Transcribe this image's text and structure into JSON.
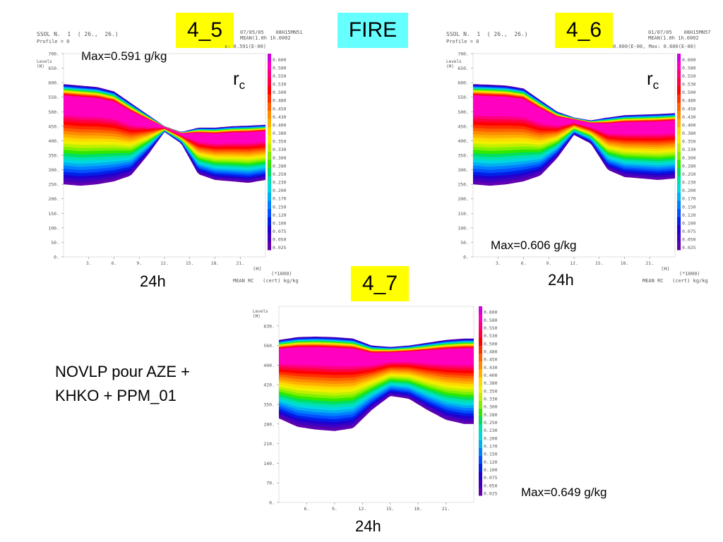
{
  "tags": {
    "p45": "4_5",
    "fire": "FIRE",
    "p46": "4_6",
    "p47": "4_7"
  },
  "panels": [
    {
      "key": "p45",
      "time_label": "24h",
      "max_label": "Max=0.591 g/kg",
      "rc": "r",
      "rc_sub": "c",
      "header": "SSOL N.  1  ( 26.,  26.)",
      "profile": "Profile = 0",
      "header_right": "07/05/05    08H15MN51\nMEAN(1.0h 1h.0002",
      "header_right2": "x: 0.591(E-00)",
      "ylevels": "Levels\n(M)",
      "xunits": "(H)",
      "corner": "(*1000)",
      "footer": "MEAN RC   (cert) kg/kg"
    },
    {
      "key": "p46",
      "time_label": "24h",
      "max_label": "Max=0.606 g/kg",
      "rc": "r",
      "rc_sub": "c",
      "header": "SSOL N.  1  ( 26.,  26.)",
      "profile": "Profile = 0",
      "header_right": "01/07/05    08H15MN57\nMEAN(1.0h 1h.0002",
      "header_right2": "0.000(E-00, Max: 0.606(E-00)",
      "ylevels": "Levels\n(M)",
      "xunits": "(H)",
      "corner": "(*1000)",
      "footer": "MEAN RC   (cert) kg/kg"
    },
    {
      "key": "p47",
      "time_label": "24h",
      "max_label": "Max=0.649 g/kg",
      "ylevels": "Levels\n(M)"
    }
  ],
  "novlp": [
    "NOVLP pour AZE +",
    "KHKO + PPM_01"
  ],
  "chart_data": [
    {
      "type": "heatmap",
      "name": "4_5",
      "x_ticks": [
        3,
        6,
        9,
        12,
        15,
        18,
        21
      ],
      "xlim": [
        0,
        24
      ],
      "y_ticks": [
        0,
        50,
        100,
        150,
        200,
        250,
        300,
        350,
        400,
        450,
        500,
        550,
        600,
        650,
        700
      ],
      "ylim": [
        0,
        700
      ],
      "x": [
        0,
        2,
        4,
        6,
        8,
        10,
        12,
        14,
        16,
        18,
        20,
        22,
        24
      ],
      "cloud_top": [
        595,
        590,
        585,
        570,
        530,
        490,
        450,
        430,
        445,
        445,
        450,
        452,
        455
      ],
      "cloud_base": [
        250,
        245,
        250,
        260,
        280,
        350,
        430,
        390,
        285,
        265,
        260,
        255,
        265
      ],
      "max_value": 0.591,
      "units": "g/kg"
    },
    {
      "type": "heatmap",
      "name": "4_6",
      "x_ticks": [
        3,
        6,
        9,
        12,
        15,
        18,
        21
      ],
      "xlim": [
        0,
        24
      ],
      "y_ticks": [
        0,
        50,
        100,
        150,
        200,
        250,
        300,
        350,
        400,
        450,
        500,
        550,
        600,
        650,
        700
      ],
      "ylim": [
        0,
        700
      ],
      "x": [
        0,
        2,
        4,
        6,
        8,
        10,
        12,
        14,
        16,
        18,
        20,
        22,
        24
      ],
      "cloud_top": [
        595,
        593,
        590,
        580,
        540,
        500,
        480,
        470,
        480,
        488,
        490,
        492,
        495
      ],
      "cloud_base": [
        250,
        245,
        250,
        260,
        280,
        340,
        420,
        390,
        300,
        275,
        270,
        265,
        270
      ],
      "max_value": 0.606,
      "units": "g/kg"
    },
    {
      "type": "heatmap",
      "name": "4_7",
      "x_ticks": [
        6,
        9,
        12,
        15,
        18,
        21
      ],
      "xlim": [
        3,
        24
      ],
      "y_ticks": [
        0,
        70,
        140,
        210,
        280,
        350,
        420,
        490,
        560,
        630
      ],
      "ylim": [
        0,
        700
      ],
      "x": [
        3,
        5,
        7,
        9,
        11,
        13,
        15,
        17,
        19,
        21,
        23,
        24
      ],
      "cloud_top": [
        580,
        590,
        592,
        590,
        585,
        560,
        555,
        560,
        570,
        580,
        585,
        585
      ],
      "cloud_base": [
        300,
        270,
        260,
        255,
        265,
        330,
        380,
        370,
        330,
        295,
        280,
        280
      ],
      "max_value": 0.649,
      "units": "g/kg"
    }
  ],
  "colorbar": {
    "levels": [
      "0.600",
      "0.580",
      "0.550",
      "0.530",
      "0.500",
      "0.480",
      "0.450",
      "0.430",
      "0.400",
      "0.380",
      "0.350",
      "0.330",
      "0.300",
      "0.280",
      "0.250",
      "0.230",
      "0.200",
      "0.170",
      "0.150",
      "0.120",
      "0.100",
      "0.075",
      "0.050",
      "0.025"
    ],
    "colors": [
      "#d000e0",
      "#ff00c0",
      "#ff0080",
      "#ff0040",
      "#ff0000",
      "#ff3000",
      "#ff6000",
      "#ff8c00",
      "#ffb000",
      "#ffd800",
      "#f0f000",
      "#c0f000",
      "#80f000",
      "#30e800",
      "#00e060",
      "#00e0b0",
      "#00d8e0",
      "#00b0f0",
      "#0080ff",
      "#0050ff",
      "#0020e8",
      "#2000d0",
      "#4000c0",
      "#6000b0"
    ]
  }
}
